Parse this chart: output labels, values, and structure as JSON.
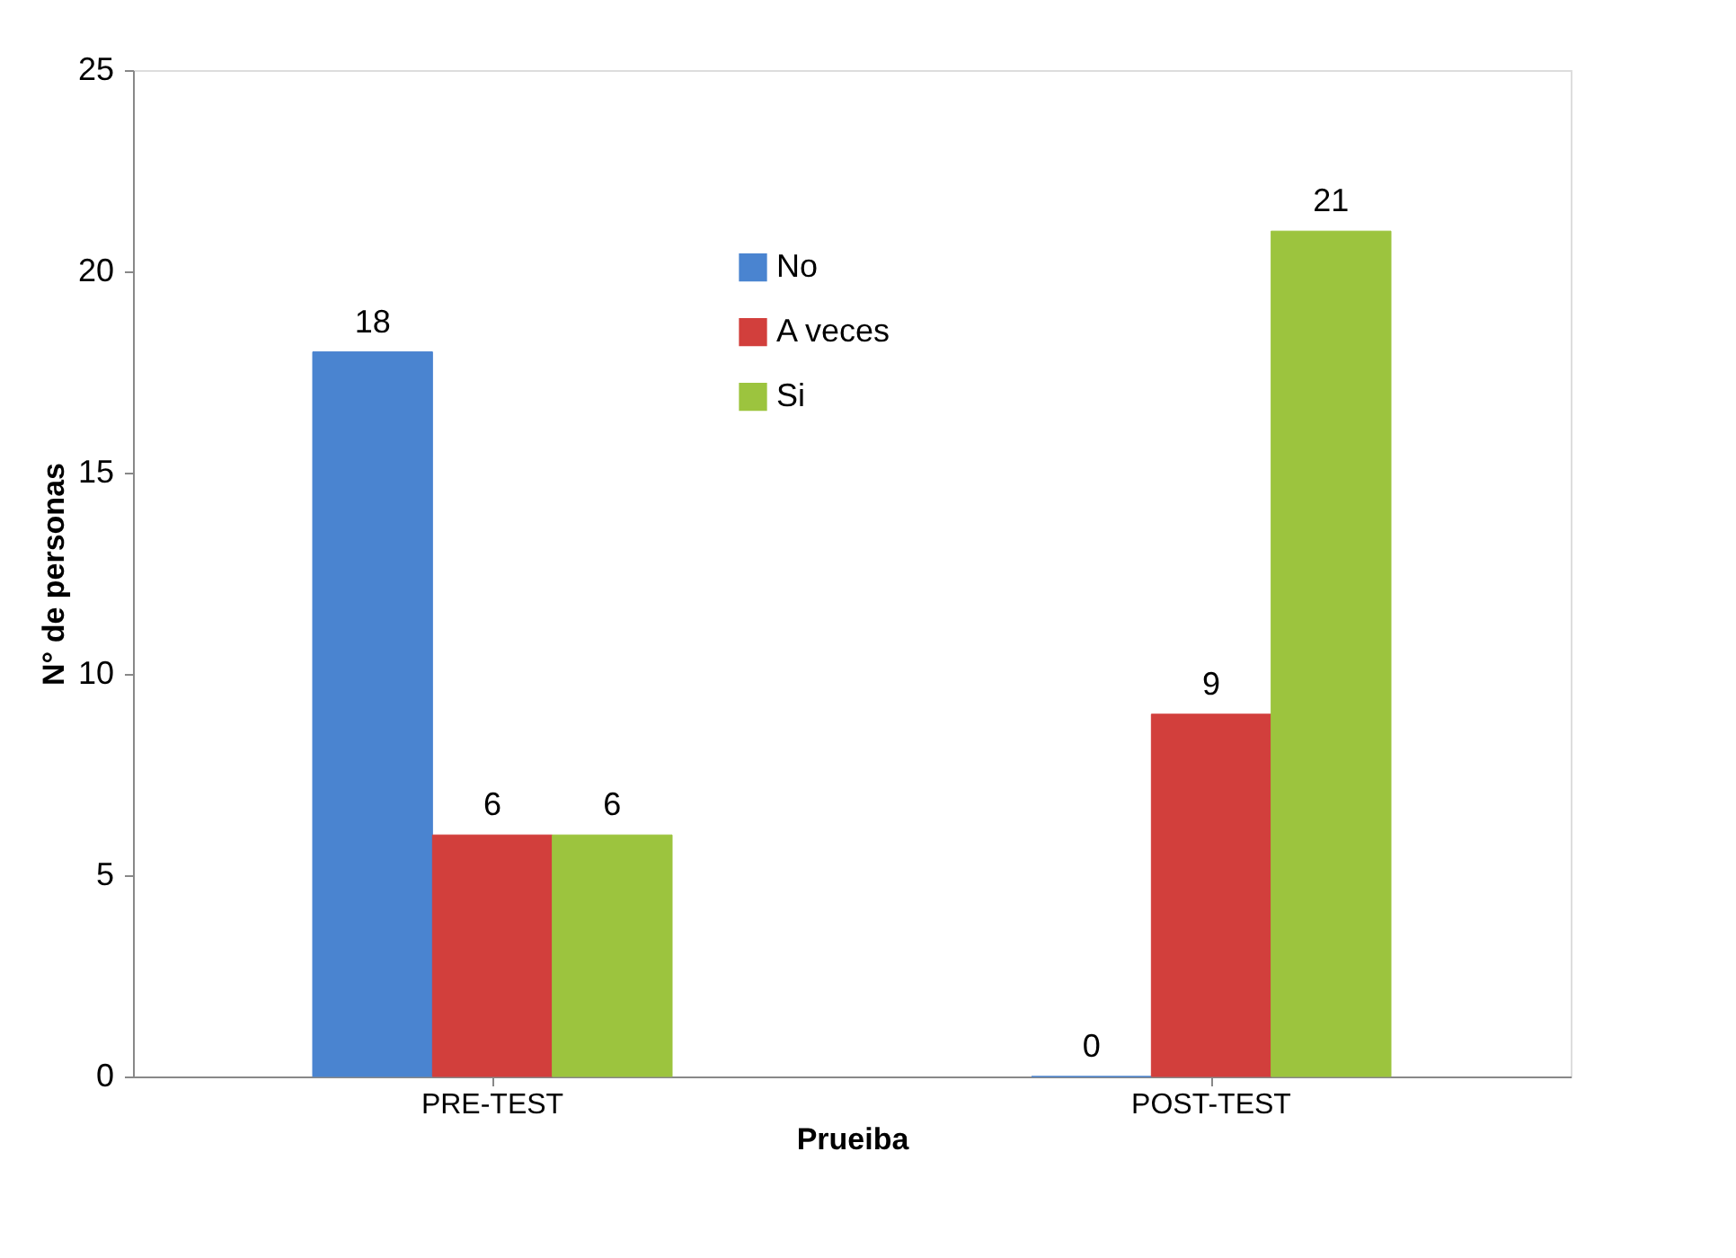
{
  "chart_data": {
    "type": "bar",
    "xlabel": "Prueiba",
    "ylabel": "N° de personas",
    "categories": [
      "PRE-TEST",
      "POST-TEST"
    ],
    "series": [
      {
        "name": "No",
        "color": "#4a84d0",
        "values": [
          18,
          0
        ]
      },
      {
        "name": "A veces",
        "color": "#d23f3c",
        "values": [
          6,
          9
        ]
      },
      {
        "name": "Si",
        "color": "#9cc43e",
        "values": [
          6,
          21
        ]
      }
    ],
    "ylim": [
      0,
      25
    ],
    "yticks": [
      0,
      5,
      10,
      15,
      20,
      25
    ],
    "grid": false,
    "legend": "top",
    "data_labels": true
  }
}
